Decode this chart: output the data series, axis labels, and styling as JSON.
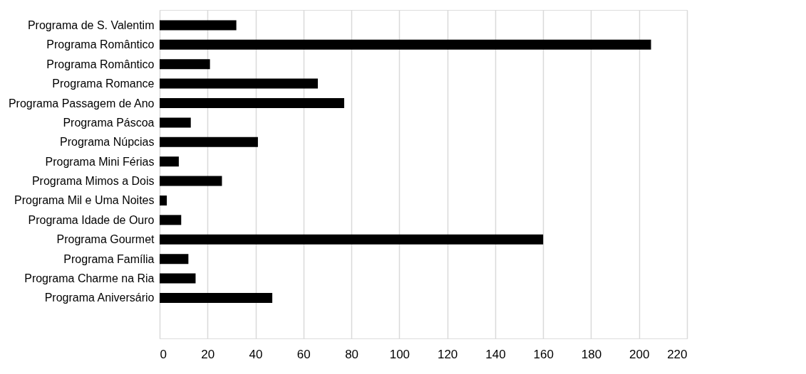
{
  "chart_data": {
    "type": "bar",
    "orientation": "horizontal",
    "categories": [
      "Programa de S. Valentim",
      "Programa Romântico",
      "Programa Romântico",
      "Programa Romance",
      "Programa Passagem de Ano",
      "Programa Páscoa",
      "Programa Núpcias",
      "Programa Mini Férias",
      "Programa Mimos a Dois",
      "Programa Mil e Uma Noites",
      "Programa Idade de Ouro",
      "Programa Gourmet",
      "Programa Família",
      "Programa Charme na Ria",
      "Programa Aniversário"
    ],
    "values": [
      32,
      205,
      21,
      66,
      77,
      13,
      41,
      8,
      26,
      3,
      9,
      160,
      12,
      15,
      47
    ],
    "color": "#000000",
    "xlim": [
      0,
      220
    ],
    "xticks": [
      0,
      20,
      40,
      60,
      80,
      100,
      120,
      140,
      160,
      180,
      200,
      220
    ],
    "grid": "x"
  }
}
